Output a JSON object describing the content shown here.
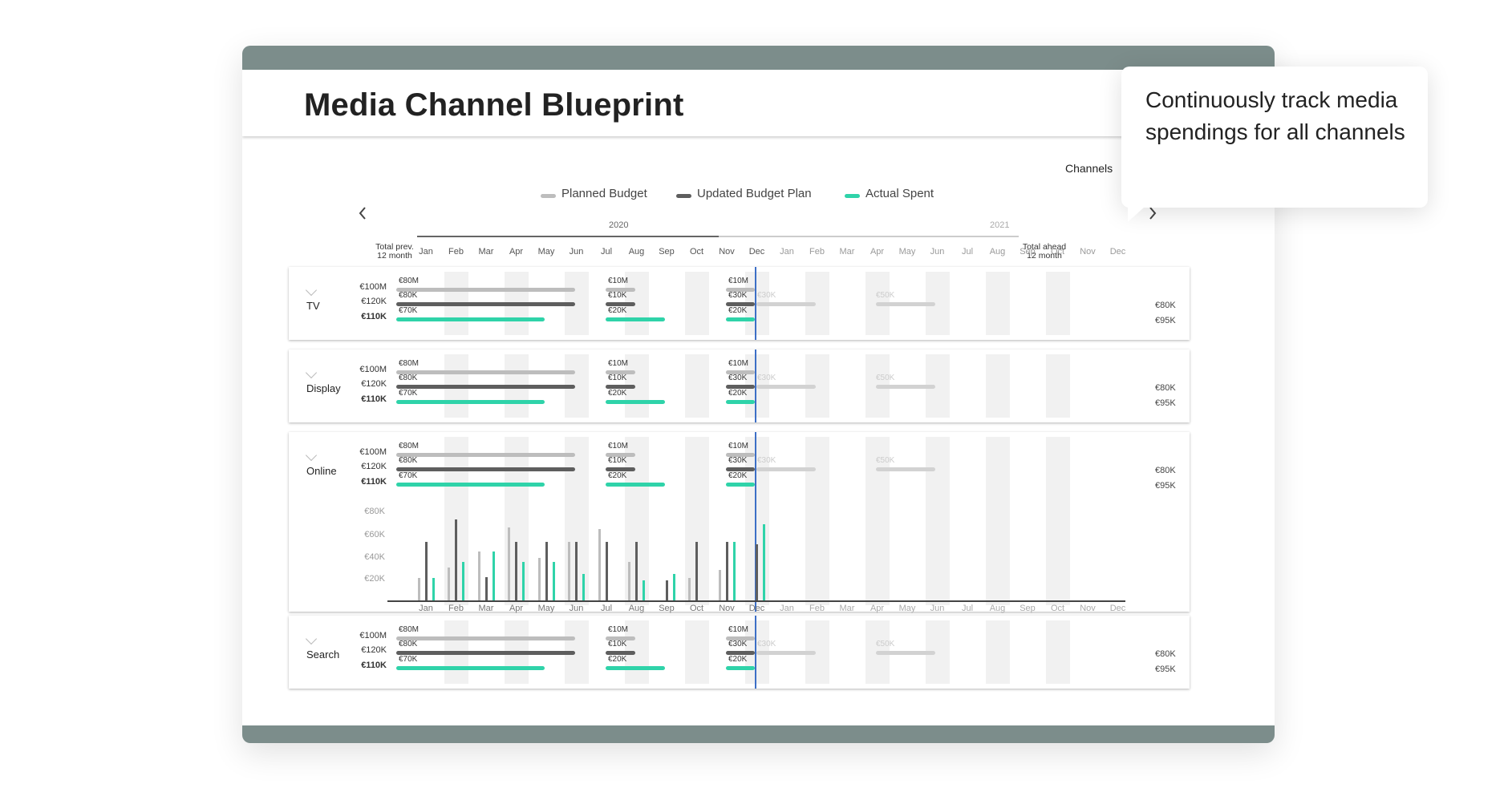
{
  "title": "Media Channel Blueprint",
  "filter_label": "Channels",
  "legend": [
    {
      "label": "Planned  Budget",
      "color": "#bdbdbd"
    },
    {
      "label": "Updated Budget Plan",
      "color": "#5e5e5e"
    },
    {
      "label": "Actual Spent",
      "color": "#2fd3a9"
    }
  ],
  "colors": {
    "planned": "#bdbdbd",
    "updated": "#5e5e5e",
    "actual": "#2fd3a9",
    "future": "#d2d2d2",
    "divider": "#3d6fc6",
    "frame": "#7c8d8b"
  },
  "icons": {
    "prev": "chevron-left-icon",
    "next": "chevron-right-icon",
    "expand": "chevron-down-icon"
  },
  "years": [
    "2020",
    "2021"
  ],
  "months": [
    "Jan",
    "Feb",
    "Mar",
    "Apr",
    "May",
    "Jun",
    "Jul",
    "Aug",
    "Sep",
    "Oct",
    "Nov",
    "Dec",
    "Jan",
    "Feb",
    "Mar",
    "Apr",
    "May",
    "Jun",
    "Jul",
    "Aug",
    "Sep",
    "Oct",
    "Nov",
    "Dec"
  ],
  "headers": {
    "prev_line1": "Total prev.",
    "prev_line2": "12 month",
    "ahead_line1": "Total ahead",
    "ahead_line2": "12 month"
  },
  "row_values": {
    "prev": [
      "€100M",
      "€120K",
      "€110K"
    ],
    "ahead": [
      "€80K",
      "€95K"
    ],
    "seg1": [
      "€80M",
      "€80K",
      "€70K"
    ],
    "seg2": [
      "€10M",
      "€10K",
      "€20K"
    ],
    "seg3": [
      "€10M",
      "€30K",
      "€20K"
    ],
    "future1": "€30K",
    "future2": "€50K"
  },
  "channels": [
    {
      "name": "TV"
    },
    {
      "name": "Display"
    },
    {
      "name": "Online"
    },
    {
      "name": "Search"
    }
  ],
  "chart_data": {
    "type": "bar",
    "categories": [
      "Jan",
      "Feb",
      "Mar",
      "Apr",
      "May",
      "Jun",
      "Jul",
      "Aug",
      "Sep",
      "Oct",
      "Nov",
      "Dec"
    ],
    "ytick_labels": [
      "€80K",
      "€60K",
      "€40K",
      "€20K"
    ],
    "bottom_labels": [
      "Jan",
      "Feb",
      "Mar",
      "Apr",
      "May",
      "Jun",
      "Jul",
      "Aug",
      "Sep",
      "Oct",
      "Nov",
      "Dec",
      "Jan",
      "Feb",
      "Mar",
      "Apr",
      "May",
      "Jun",
      "Jul",
      "Aug",
      "Sep",
      "Oct",
      "Nov",
      "Dec"
    ],
    "ylim": [
      0,
      90
    ],
    "series": [
      {
        "name": "Planned  Budget",
        "values": [
          22,
          32,
          48,
          72,
          42,
          58,
          70,
          38,
          0,
          22,
          30,
          0
        ]
      },
      {
        "name": "Updated Budget Plan",
        "values": [
          58,
          80,
          23,
          58,
          58,
          58,
          58,
          58,
          20,
          58,
          58,
          55
        ]
      },
      {
        "name": "Actual Spent",
        "values": [
          22,
          38,
          48,
          38,
          38,
          26,
          0,
          20,
          26,
          0,
          58,
          75
        ]
      }
    ]
  },
  "tooltip": "Continuously track media spendings for all channels"
}
